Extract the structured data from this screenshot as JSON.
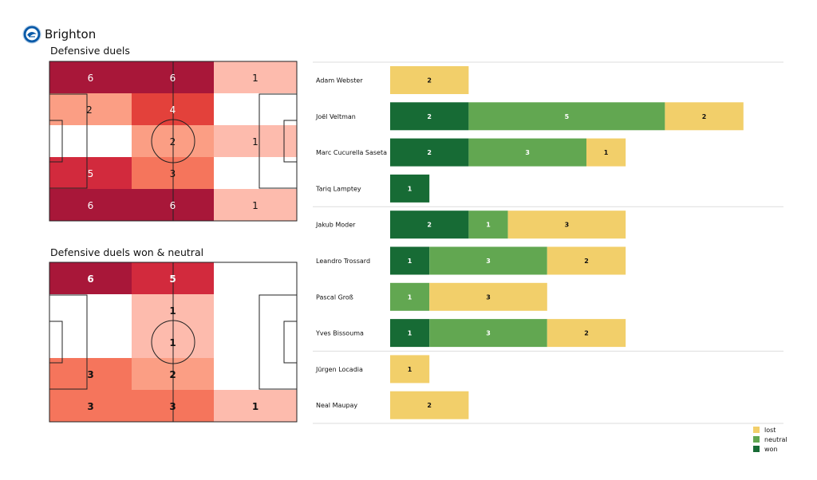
{
  "team": {
    "name": "Brighton"
  },
  "colors": {
    "won": "#176b35",
    "neutral": "#62a751",
    "lost": "#f2cf6a",
    "heat_levels": [
      "#ffffff",
      "#fdbbad",
      "#fb9e84",
      "#f5755c",
      "#e3413b",
      "#d22a3d",
      "#a81739"
    ]
  },
  "chart_data": [
    {
      "type": "heatmap",
      "title": "Defensive duels",
      "grid": [
        [
          6,
          6,
          1
        ],
        [
          2,
          4,
          0
        ],
        [
          0,
          2,
          1
        ],
        [
          5,
          3,
          0
        ],
        [
          6,
          6,
          1
        ]
      ]
    },
    {
      "type": "heatmap",
      "title": "Defensive duels won & neutral",
      "grid": [
        [
          6,
          5,
          0
        ],
        [
          0,
          1,
          0
        ],
        [
          0,
          1,
          0
        ],
        [
          3,
          2,
          0
        ],
        [
          3,
          3,
          1
        ]
      ]
    },
    {
      "type": "bar",
      "stacked": true,
      "orientation": "horizontal",
      "categories": [
        "Adam Webster",
        "Joël Veltman",
        "Marc Cucurella Saseta",
        "Tariq Lamptey",
        "Jakub Moder",
        "Leandro Trossard",
        "Pascal Groß",
        "Yves Bissouma",
        "Jürgen Locadia",
        "Neal Maupay"
      ],
      "groups": [
        [
          0,
          1,
          2,
          3
        ],
        [
          4,
          5,
          6,
          7
        ],
        [
          8,
          9
        ]
      ],
      "series": [
        {
          "name": "won",
          "values": [
            0,
            2,
            2,
            1,
            2,
            1,
            0,
            1,
            0,
            0
          ]
        },
        {
          "name": "neutral",
          "values": [
            0,
            5,
            3,
            0,
            1,
            3,
            1,
            3,
            0,
            0
          ]
        },
        {
          "name": "lost",
          "values": [
            2,
            2,
            1,
            0,
            3,
            2,
            3,
            2,
            1,
            2
          ]
        }
      ],
      "legend": {
        "position": "bottom-right",
        "order": [
          "lost",
          "neutral",
          "won"
        ]
      }
    }
  ]
}
